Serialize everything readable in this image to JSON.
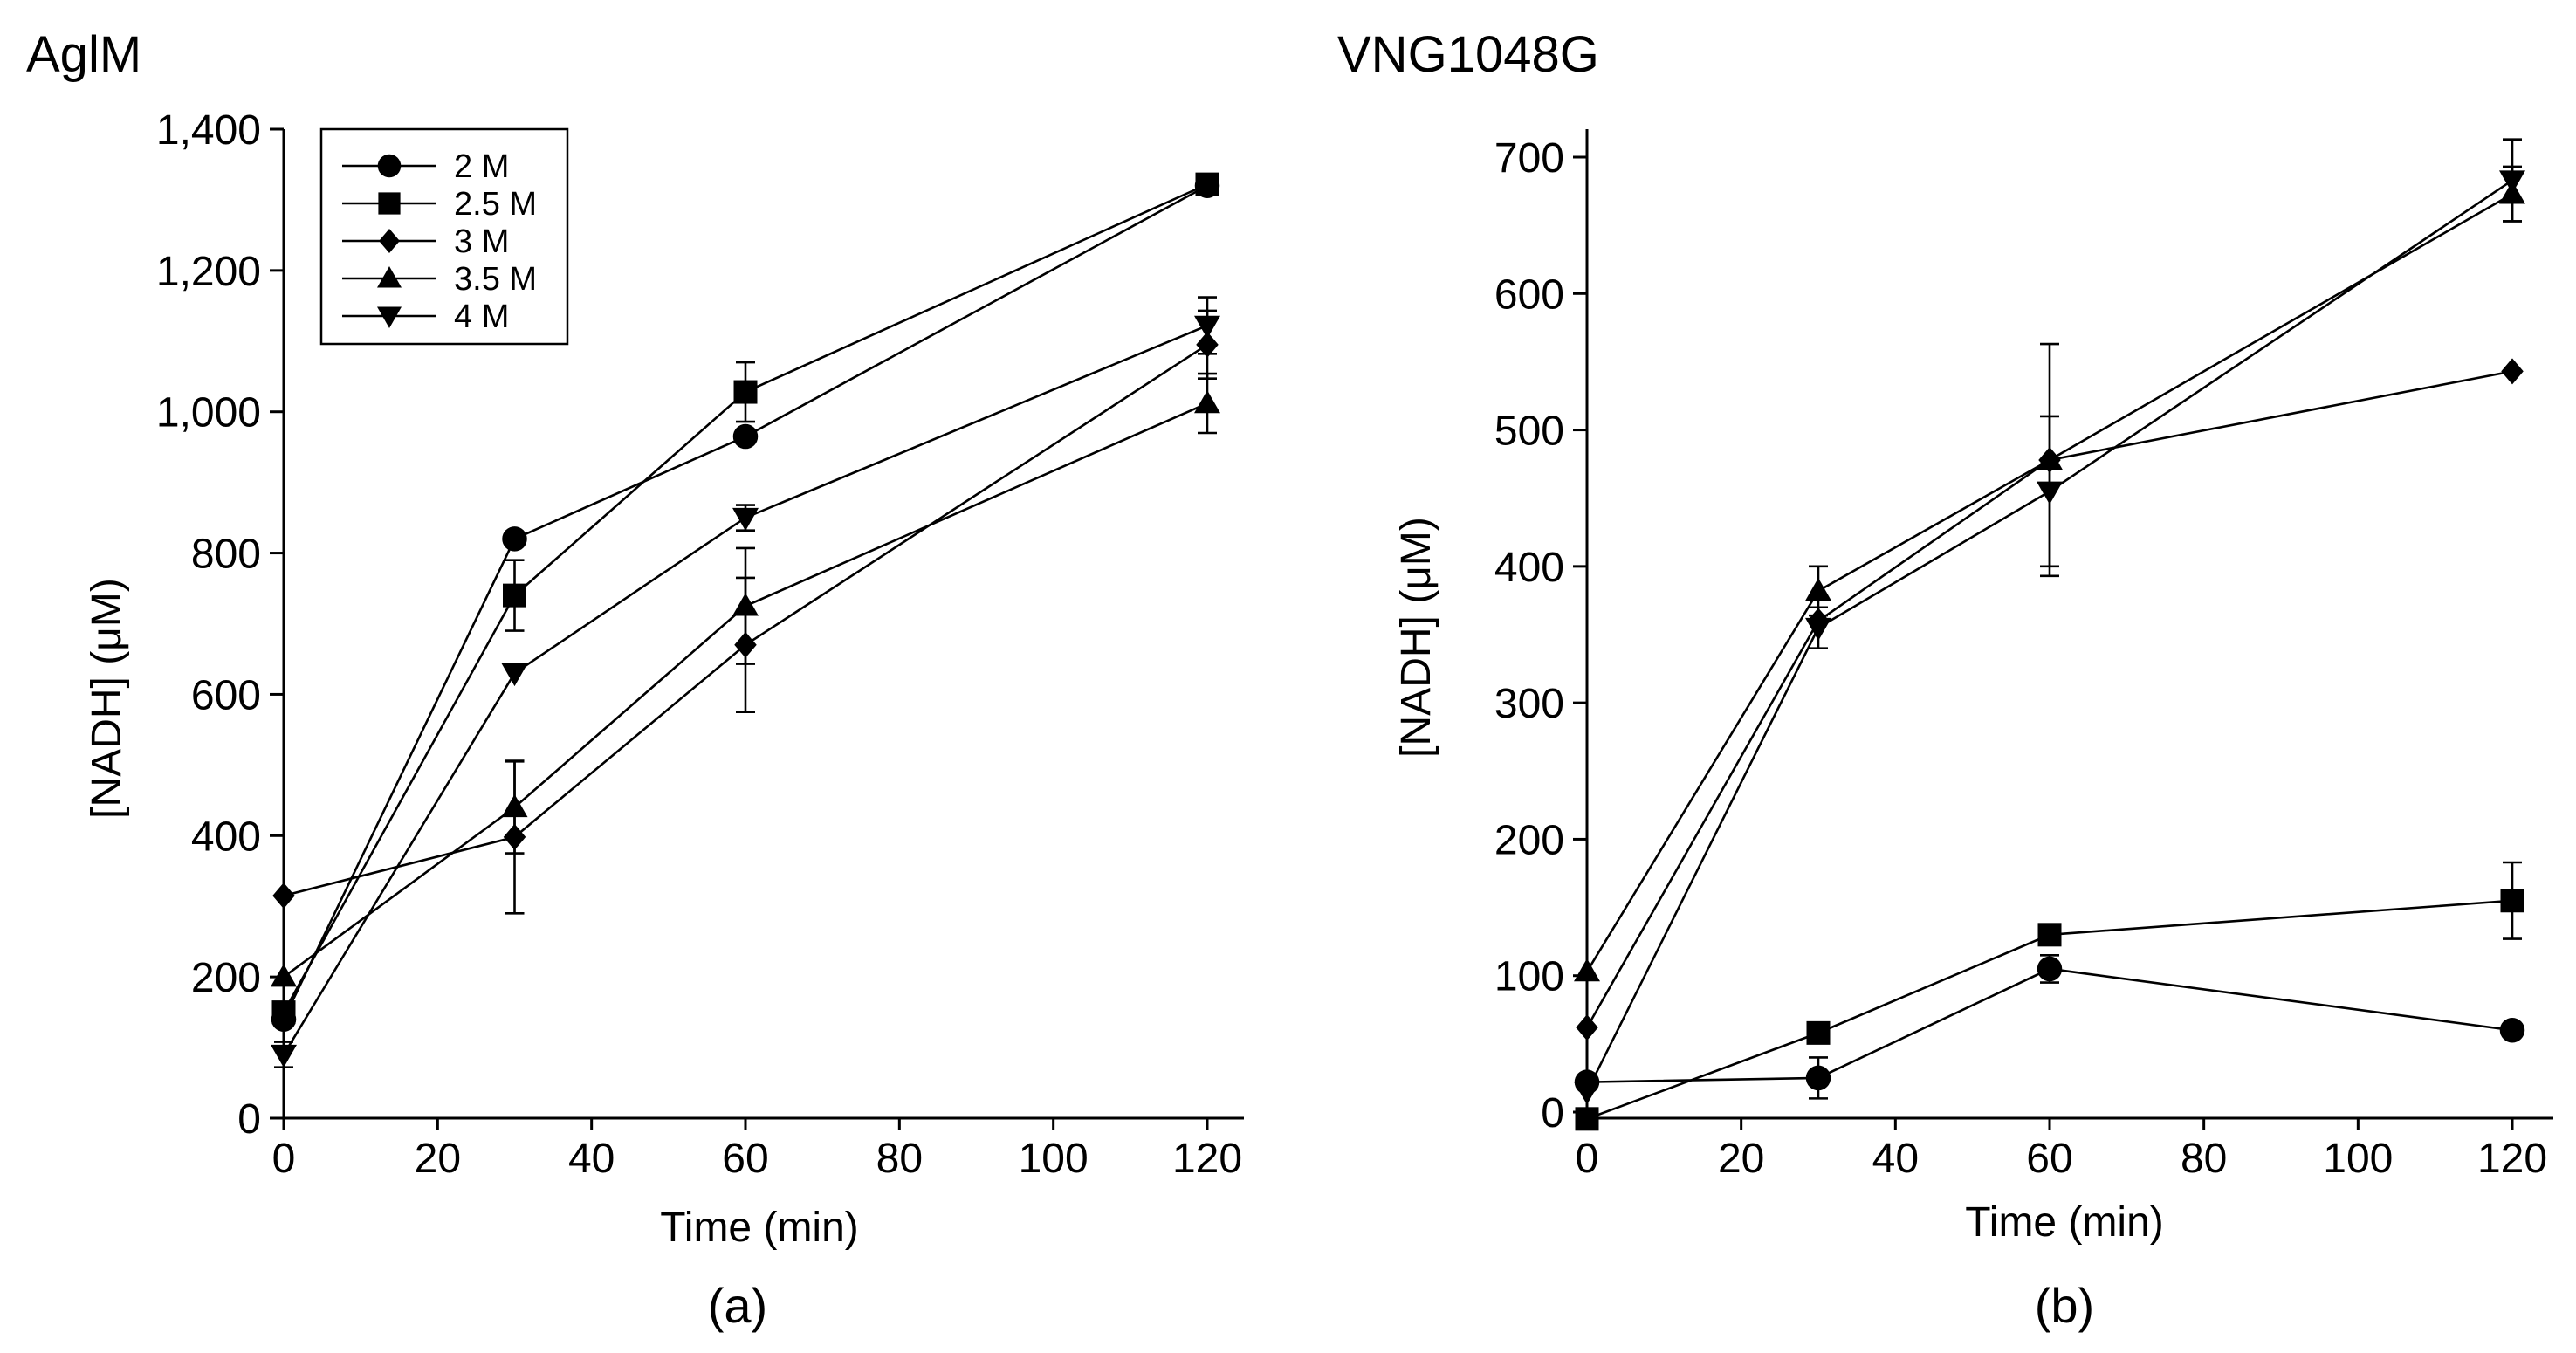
{
  "chart_data": [
    {
      "type": "line",
      "panel_title": "AglM",
      "caption": "(a)",
      "xlabel": "Time (min)",
      "ylabel": "[NADH] (μM)",
      "xlim": [
        0,
        120
      ],
      "ylim": [
        0,
        1400
      ],
      "xticks": [
        0,
        20,
        40,
        60,
        80,
        100,
        120
      ],
      "xtick_labels": [
        "0",
        "20",
        "40",
        "60",
        "80",
        "100",
        "120"
      ],
      "yticks": [
        0,
        200,
        400,
        600,
        800,
        1000,
        1200,
        1400
      ],
      "ytick_labels": [
        "0",
        "200",
        "400",
        "600",
        "800",
        "1,000",
        "1,200",
        "1,400"
      ],
      "grid": false,
      "legend_position": "top-left",
      "x": [
        0,
        30,
        60,
        120
      ],
      "series": [
        {
          "name": "2 M",
          "marker": "circle",
          "values": [
            140,
            820,
            965,
            1320
          ],
          "errors": [
            0,
            0,
            0,
            0
          ]
        },
        {
          "name": "2.5 M",
          "marker": "square",
          "values": [
            150,
            740,
            1028,
            1322
          ],
          "errors": [
            0,
            50,
            42,
            0
          ]
        },
        {
          "name": "3 M",
          "marker": "diamond",
          "values": [
            315,
            398,
            670,
            1095
          ],
          "errors": [
            0,
            108,
            95,
            48
          ]
        },
        {
          "name": "3.5 M",
          "marker": "triangle-up",
          "values": [
            200,
            440,
            725,
            1012
          ],
          "errors": [
            0,
            65,
            82,
            42
          ]
        },
        {
          "name": "4 M",
          "marker": "triangle-down",
          "values": [
            90,
            630,
            850,
            1122
          ],
          "errors": [
            18,
            0,
            18,
            40
          ]
        }
      ]
    },
    {
      "type": "line",
      "panel_title": "VNG1048G",
      "caption": "(b)",
      "xlabel": "Time (min)",
      "ylabel": "[NADH] (μM)",
      "xlim": [
        0,
        120
      ],
      "ylim": [
        0,
        700
      ],
      "xticks": [
        0,
        20,
        40,
        60,
        80,
        100,
        120
      ],
      "xtick_labels": [
        "0",
        "20",
        "40",
        "60",
        "80",
        "100",
        "120"
      ],
      "yticks": [
        0,
        100,
        200,
        300,
        400,
        500,
        600,
        700
      ],
      "ytick_labels": [
        "0",
        "100",
        "200",
        "300",
        "400",
        "500",
        "600",
        "700"
      ],
      "grid": false,
      "legend_position": "none",
      "x": [
        0,
        30,
        60,
        120
      ],
      "series": [
        {
          "marker": "circle",
          "values": [
            22,
            25,
            105,
            60
          ],
          "errors": [
            0,
            15,
            10,
            0
          ]
        },
        {
          "marker": "square",
          "values": [
            -5,
            58,
            130,
            155
          ],
          "errors": [
            0,
            0,
            0,
            28
          ]
        },
        {
          "marker": "diamond",
          "values": [
            62,
            360,
            478,
            543
          ],
          "errors": [
            0,
            0,
            0,
            0
          ]
        },
        {
          "marker": "triangle-up",
          "values": [
            103,
            382,
            478,
            673
          ],
          "errors": [
            0,
            18,
            85,
            20
          ]
        },
        {
          "marker": "triangle-down",
          "values": [
            15,
            355,
            455,
            683
          ],
          "errors": [
            0,
            15,
            55,
            30
          ]
        }
      ]
    }
  ]
}
